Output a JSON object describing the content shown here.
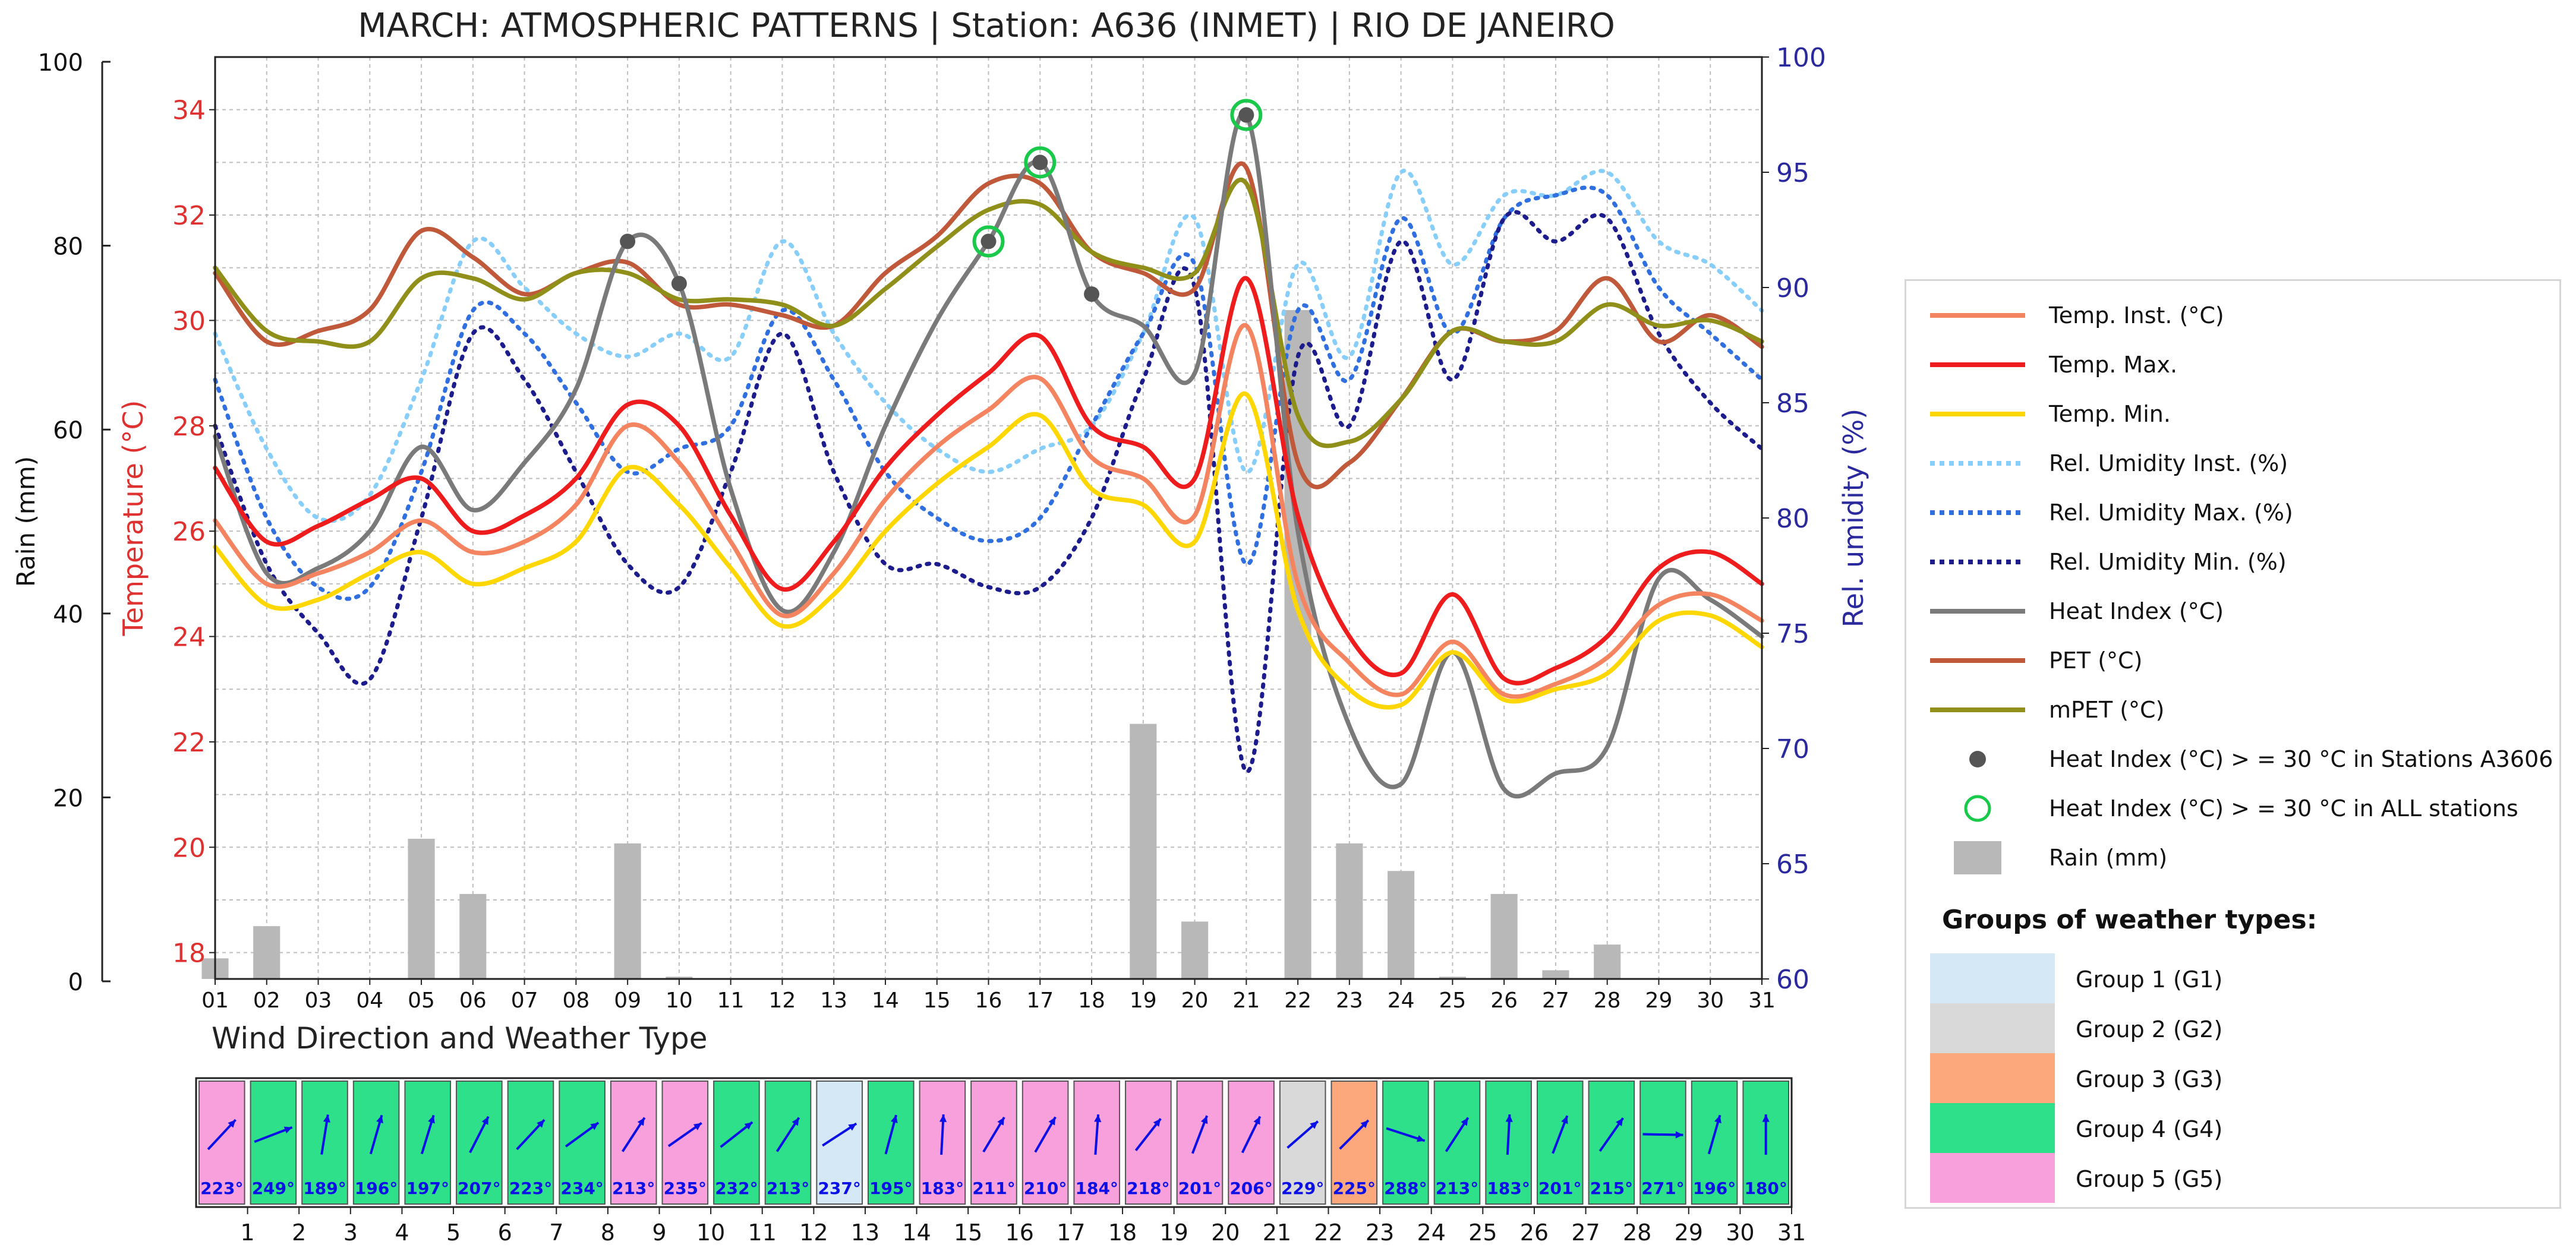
{
  "chart_data": [
    {
      "type": "line",
      "title": "MARCH: ATMOSPHERIC PATTERNS | Station: A636 (INMET) | RIO DE JANEIRO",
      "xlabel": "",
      "x": [
        "01",
        "02",
        "03",
        "04",
        "05",
        "06",
        "07",
        "08",
        "09",
        "10",
        "11",
        "12",
        "13",
        "14",
        "15",
        "16",
        "17",
        "18",
        "19",
        "20",
        "21",
        "22",
        "23",
        "24",
        "25",
        "26",
        "27",
        "28",
        "29",
        "30",
        "31"
      ],
      "axes": {
        "rain": {
          "label": "Rain (mm)",
          "ylim": [
            0,
            100
          ],
          "ticks": [
            "0",
            "20",
            "40",
            "60",
            "80",
            "100"
          ]
        },
        "temperature": {
          "label": "Temperature (°C)",
          "ylim": [
            17.5,
            35
          ],
          "ticks": [
            "18",
            "20",
            "22",
            "24",
            "26",
            "28",
            "30",
            "32",
            "34"
          ]
        },
        "humidity": {
          "label": "Rel. umidity (%)",
          "ylim": [
            60,
            100
          ],
          "ticks": [
            "60",
            "65",
            "70",
            "75",
            "80",
            "85",
            "90",
            "95",
            "100"
          ]
        }
      },
      "series": [
        {
          "name": "Temp. Inst. (°C)",
          "axis": "temperature",
          "color": "#f4845f",
          "style": "solid",
          "values": [
            26.2,
            25.0,
            25.2,
            25.6,
            26.2,
            25.6,
            25.8,
            26.5,
            28.0,
            27.3,
            25.8,
            24.4,
            25.2,
            26.6,
            27.6,
            28.3,
            28.9,
            27.4,
            27.0,
            26.3,
            29.9,
            25.0,
            23.5,
            22.9,
            23.9,
            22.9,
            23.1,
            23.6,
            24.6,
            24.8,
            24.3
          ]
        },
        {
          "name": "Temp. Max.",
          "axis": "temperature",
          "color": "#ee1c1c",
          "style": "solid",
          "values": [
            27.2,
            25.8,
            26.1,
            26.6,
            27.0,
            26.0,
            26.3,
            27.0,
            28.4,
            28.0,
            26.3,
            24.9,
            25.8,
            27.2,
            28.2,
            29.0,
            29.7,
            28.0,
            27.6,
            27.0,
            30.8,
            26.3,
            24.0,
            23.3,
            24.8,
            23.2,
            23.4,
            24.0,
            25.3,
            25.6,
            25.0
          ]
        },
        {
          "name": "Temp. Min.",
          "axis": "temperature",
          "color": "#ffd700",
          "style": "solid",
          "values": [
            25.7,
            24.6,
            24.7,
            25.2,
            25.6,
            25.0,
            25.3,
            25.8,
            27.2,
            26.5,
            25.3,
            24.2,
            24.8,
            26.0,
            26.9,
            27.6,
            28.2,
            26.8,
            26.5,
            25.8,
            28.6,
            24.5,
            23.0,
            22.7,
            23.7,
            22.8,
            23.0,
            23.3,
            24.3,
            24.4,
            23.8
          ]
        },
        {
          "name": "Rel. Umidity Inst. (%)",
          "axis": "humidity",
          "color": "#87cefa",
          "style": "dotted",
          "values": [
            88,
            83,
            80,
            81,
            86,
            92,
            90,
            88,
            87,
            88,
            87,
            92,
            88,
            85,
            83,
            82,
            83,
            84,
            88,
            93,
            82,
            91,
            87,
            95,
            91,
            94,
            94,
            95,
            92,
            91,
            89
          ]
        },
        {
          "name": "Rel. Umidity Max. (%)",
          "axis": "humidity",
          "color": "#2f6fe0",
          "style": "dotted",
          "values": [
            86,
            80,
            77,
            77,
            82,
            89,
            88,
            85,
            82,
            83,
            84,
            89,
            86,
            82,
            80,
            79,
            80,
            84,
            88,
            91,
            78,
            89,
            86,
            93,
            88,
            93,
            94,
            94,
            90,
            88,
            86
          ]
        },
        {
          "name": "Rel. Umidity Min. (%)",
          "axis": "humidity",
          "color": "#1c1c8c",
          "style": "dotted",
          "values": [
            84,
            78,
            75,
            73,
            80,
            88,
            86,
            82,
            78,
            77,
            82,
            88,
            82,
            78,
            78,
            77,
            77,
            80,
            86,
            90,
            69,
            87,
            84,
            92,
            86,
            93,
            92,
            93,
            88,
            85,
            83
          ]
        },
        {
          "name": "Heat Index (°C)",
          "axis": "temperature",
          "color": "#7a7a7a",
          "style": "solid",
          "values": [
            27.8,
            25.2,
            25.3,
            26.0,
            27.6,
            26.4,
            27.3,
            28.7,
            31.5,
            30.7,
            26.8,
            24.5,
            25.6,
            28.0,
            30.0,
            31.5,
            33.0,
            30.5,
            29.9,
            29.0,
            33.9,
            26.0,
            22.3,
            21.2,
            23.7,
            21.1,
            21.4,
            21.9,
            25.1,
            24.7,
            24.0
          ]
        },
        {
          "name": "PET (°C)",
          "axis": "temperature",
          "color": "#c0583a",
          "style": "solid",
          "values": [
            30.9,
            29.6,
            29.8,
            30.2,
            31.7,
            31.2,
            30.5,
            30.9,
            31.1,
            30.3,
            30.3,
            30.1,
            29.9,
            30.9,
            31.6,
            32.6,
            32.6,
            31.3,
            30.9,
            30.6,
            32.9,
            27.3,
            27.3,
            28.5,
            29.8,
            29.6,
            29.8,
            30.8,
            29.6,
            30.1,
            29.5
          ]
        },
        {
          "name": "mPET  (°C)",
          "axis": "temperature",
          "color": "#8f8f1a",
          "style": "solid",
          "values": [
            31.0,
            29.8,
            29.6,
            29.6,
            30.8,
            30.8,
            30.4,
            30.9,
            30.9,
            30.4,
            30.4,
            30.3,
            29.9,
            30.6,
            31.4,
            32.1,
            32.2,
            31.3,
            31.0,
            30.9,
            32.6,
            28.2,
            27.7,
            28.5,
            29.8,
            29.6,
            29.6,
            30.3,
            29.9,
            30.0,
            29.6
          ]
        },
        {
          "name": "Rain (mm)",
          "axis": "rain",
          "type": "bar",
          "color": "#b8b8b8",
          "values": [
            2.5,
            6,
            0,
            0,
            15.5,
            9.5,
            0.3,
            0,
            15,
            0.5,
            0,
            0,
            0,
            0,
            0,
            0,
            0,
            0,
            28,
            6.5,
            0,
            73,
            15,
            12,
            0.5,
            9.5,
            1.2,
            4,
            0,
            0.2,
            0
          ]
        }
      ],
      "markers": [
        {
          "name": "Heat Index (°C) > = 30 °C in Stations A3606",
          "color": "#555555",
          "days": [
            "09",
            "10",
            "16",
            "17",
            "18",
            "21"
          ],
          "values": [
            31.5,
            30.7,
            31.5,
            33.0,
            30.5,
            33.9
          ]
        },
        {
          "name": "Heat Index (°C) > = 30 °C in ALL stations",
          "color": "#19c94a",
          "days": [
            "16",
            "17",
            "21"
          ],
          "values": [
            31.5,
            33.0,
            33.9
          ]
        }
      ],
      "legend": "right"
    },
    {
      "type": "table",
      "title": "Wind Direction and Weather Type",
      "days": [
        "1",
        "2",
        "3",
        "4",
        "5",
        "6",
        "7",
        "8",
        "9",
        "10",
        "11",
        "12",
        "13",
        "14",
        "15",
        "16",
        "17",
        "18",
        "19",
        "20",
        "21",
        "22",
        "23",
        "24",
        "25",
        "26",
        "27",
        "28",
        "29",
        "30",
        "31"
      ],
      "wind_direction_deg": [
        223,
        249,
        189,
        196,
        197,
        207,
        223,
        234,
        213,
        235,
        232,
        213,
        237,
        195,
        183,
        211,
        210,
        184,
        218,
        201,
        206,
        229,
        225,
        288,
        213,
        183,
        201,
        215,
        271,
        196,
        180
      ],
      "wind_labels": [
        "223°",
        "249°",
        "189°",
        "196°",
        "197°",
        "207°",
        "223°",
        "234°",
        "213°",
        "235°",
        "232°",
        "213°",
        "237°",
        "195°",
        "183°",
        "211°",
        "210°",
        "184°",
        "218°",
        "201°",
        "206°",
        "229°",
        "225°",
        "288°",
        "213°",
        "183°",
        "201°",
        "215°",
        "271°",
        "196°",
        "180°"
      ],
      "weather_group": [
        5,
        4,
        4,
        4,
        4,
        4,
        4,
        4,
        5,
        5,
        4,
        4,
        1,
        4,
        5,
        5,
        5,
        5,
        5,
        5,
        5,
        2,
        3,
        4,
        4,
        4,
        4,
        4,
        4,
        4,
        4
      ]
    }
  ],
  "legend_labels": {
    "temp_inst": "Temp. Inst. (°C)",
    "temp_max": "Temp. Max.",
    "temp_min": "Temp. Min.",
    "rh_inst": "Rel. Umidity Inst. (%)",
    "rh_max": "Rel. Umidity Max. (%)",
    "rh_min": "Rel. Umidity Min. (%)",
    "heat_index": "Heat Index (°C)",
    "pet": "PET (°C)",
    "mpet": "mPET  (°C)",
    "hi_station": "Heat Index (°C) > = 30 °C in Stations A3606",
    "hi_all": "Heat Index (°C) > = 30 °C in ALL stations",
    "rain": "Rain (mm)"
  },
  "groups": {
    "title": "Groups of weather types:",
    "items": [
      {
        "label": "Group 1 (G1)",
        "color": "#d5e8f5"
      },
      {
        "label": "Group 2 (G2)",
        "color": "#d9d9d9"
      },
      {
        "label": "Group 3 (G3)",
        "color": "#fca77c"
      },
      {
        "label": "Group 4 (G4)",
        "color": "#2fe08a"
      },
      {
        "label": "Group 5 (G5)",
        "color": "#f7a0dc"
      }
    ]
  },
  "colors": {
    "temp_axis": "#e03131",
    "humidity_axis": "#2a2a9e",
    "wind_arrow": "#0a10e6",
    "grid": "#bdbdbd"
  }
}
